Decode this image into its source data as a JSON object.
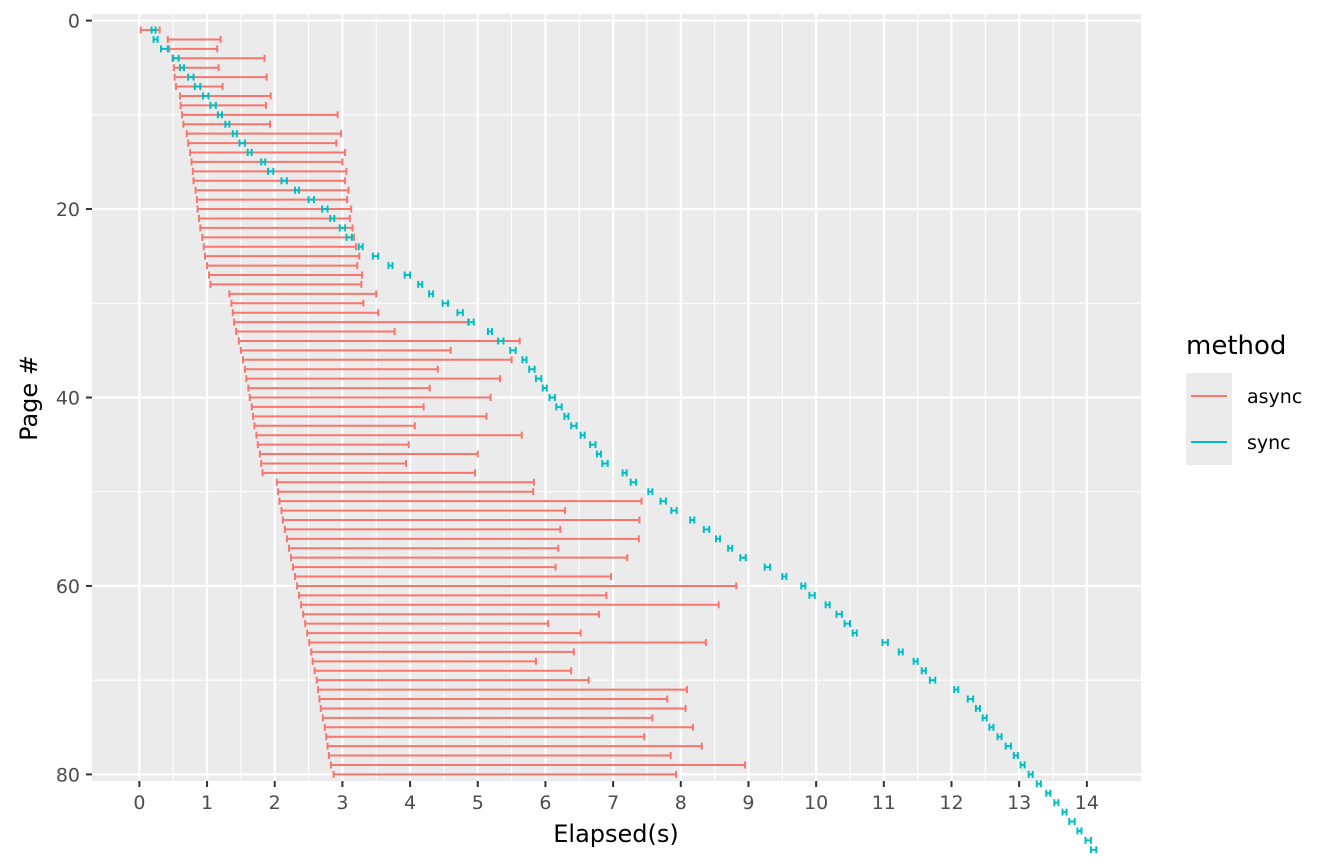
{
  "chart_data": {
    "type": "errorbar-range",
    "title": "",
    "xlabel": "Elapsed(s)",
    "ylabel": "Page #",
    "xlim": [
      -0.7,
      14.8
    ],
    "ylim": [
      80.7,
      -0.7
    ],
    "y_reversed": true,
    "xticks": [
      0,
      1,
      2,
      3,
      4,
      5,
      6,
      7,
      8,
      9,
      10,
      11,
      12,
      13,
      14
    ],
    "yticks": [
      0,
      20,
      40,
      60,
      80
    ],
    "grid": true,
    "panel_background": "#ebebeb",
    "legend": {
      "title": "method",
      "position": "right"
    },
    "series": [
      {
        "name": "async",
        "color": "#f8766d",
        "ranges": [
          [
            1,
            0.02,
            0.3
          ],
          [
            2,
            0.42,
            1.2
          ],
          [
            3,
            0.44,
            1.15
          ],
          [
            4,
            0.49,
            1.85
          ],
          [
            5,
            0.51,
            1.17
          ],
          [
            6,
            0.52,
            1.88
          ],
          [
            7,
            0.54,
            1.23
          ],
          [
            8,
            0.6,
            1.94
          ],
          [
            9,
            0.61,
            1.87
          ],
          [
            10,
            0.63,
            2.93
          ],
          [
            11,
            0.65,
            1.93
          ],
          [
            12,
            0.7,
            2.98
          ],
          [
            13,
            0.72,
            2.91
          ],
          [
            14,
            0.75,
            3.04
          ],
          [
            15,
            0.77,
            3.0
          ],
          [
            16,
            0.79,
            3.06
          ],
          [
            17,
            0.8,
            3.04
          ],
          [
            18,
            0.83,
            3.09
          ],
          [
            19,
            0.85,
            3.07
          ],
          [
            20,
            0.86,
            3.13
          ],
          [
            21,
            0.88,
            3.11
          ],
          [
            22,
            0.9,
            3.15
          ],
          [
            23,
            0.93,
            3.17
          ],
          [
            24,
            0.95,
            3.2
          ],
          [
            25,
            0.97,
            3.25
          ],
          [
            26,
            1.0,
            3.22
          ],
          [
            27,
            1.03,
            3.29
          ],
          [
            28,
            1.05,
            3.28
          ],
          [
            29,
            1.33,
            3.5
          ],
          [
            30,
            1.36,
            3.31
          ],
          [
            31,
            1.38,
            3.53
          ],
          [
            32,
            1.4,
            4.87
          ],
          [
            33,
            1.43,
            3.77
          ],
          [
            34,
            1.47,
            5.62
          ],
          [
            35,
            1.5,
            4.6
          ],
          [
            36,
            1.53,
            5.5
          ],
          [
            37,
            1.56,
            4.41
          ],
          [
            38,
            1.58,
            5.33
          ],
          [
            39,
            1.61,
            4.29
          ],
          [
            40,
            1.63,
            5.19
          ],
          [
            41,
            1.66,
            4.2
          ],
          [
            42,
            1.68,
            5.13
          ],
          [
            43,
            1.7,
            4.07
          ],
          [
            44,
            1.73,
            5.65
          ],
          [
            45,
            1.75,
            3.98
          ],
          [
            46,
            1.78,
            5.0
          ],
          [
            47,
            1.8,
            3.94
          ],
          [
            48,
            1.82,
            4.96
          ],
          [
            49,
            2.03,
            5.83
          ],
          [
            50,
            2.05,
            5.82
          ],
          [
            51,
            2.07,
            7.42
          ],
          [
            52,
            2.1,
            6.29
          ],
          [
            53,
            2.12,
            7.39
          ],
          [
            54,
            2.15,
            6.22
          ],
          [
            55,
            2.18,
            7.38
          ],
          [
            56,
            2.21,
            6.19
          ],
          [
            57,
            2.24,
            7.21
          ],
          [
            58,
            2.27,
            6.15
          ],
          [
            59,
            2.3,
            6.97
          ],
          [
            60,
            2.33,
            8.82
          ],
          [
            61,
            2.36,
            6.9
          ],
          [
            62,
            2.39,
            8.56
          ],
          [
            63,
            2.42,
            6.79
          ],
          [
            64,
            2.45,
            6.04
          ],
          [
            65,
            2.48,
            6.52
          ],
          [
            66,
            2.51,
            8.37
          ],
          [
            67,
            2.54,
            6.42
          ],
          [
            68,
            2.56,
            5.86
          ],
          [
            69,
            2.59,
            6.38
          ],
          [
            70,
            2.62,
            6.64
          ],
          [
            71,
            2.64,
            8.09
          ],
          [
            72,
            2.66,
            7.8
          ],
          [
            73,
            2.68,
            8.07
          ],
          [
            74,
            2.71,
            7.58
          ],
          [
            75,
            2.74,
            8.18
          ],
          [
            76,
            2.76,
            7.46
          ],
          [
            77,
            2.78,
            8.31
          ],
          [
            78,
            2.8,
            7.85
          ],
          [
            79,
            2.83,
            8.95
          ],
          [
            80,
            2.87,
            7.93
          ]
        ]
      },
      {
        "name": "sync",
        "color": "#00bfc4",
        "ranges": [
          [
            1,
            0.18,
            0.24
          ],
          [
            2,
            0.21,
            0.27
          ],
          [
            3,
            0.32,
            0.42
          ],
          [
            4,
            0.5,
            0.58
          ],
          [
            5,
            0.6,
            0.66
          ],
          [
            6,
            0.72,
            0.8
          ],
          [
            7,
            0.82,
            0.9
          ],
          [
            8,
            0.94,
            1.02
          ],
          [
            9,
            1.05,
            1.13
          ],
          [
            10,
            1.16,
            1.22
          ],
          [
            11,
            1.27,
            1.33
          ],
          [
            12,
            1.38,
            1.44
          ],
          [
            13,
            1.48,
            1.56
          ],
          [
            14,
            1.6,
            1.66
          ],
          [
            15,
            1.8,
            1.86
          ],
          [
            16,
            1.9,
            1.98
          ],
          [
            17,
            2.1,
            2.18
          ],
          [
            18,
            2.3,
            2.36
          ],
          [
            19,
            2.5,
            2.58
          ],
          [
            20,
            2.7,
            2.78
          ],
          [
            21,
            2.82,
            2.88
          ],
          [
            22,
            2.96,
            3.04
          ],
          [
            23,
            3.06,
            3.14
          ],
          [
            24,
            3.24,
            3.3
          ],
          [
            25,
            3.45,
            3.53
          ],
          [
            26,
            3.68,
            3.74
          ],
          [
            27,
            3.92,
            4.0
          ],
          [
            28,
            4.12,
            4.18
          ],
          [
            29,
            4.28,
            4.34
          ],
          [
            30,
            4.48,
            4.56
          ],
          [
            31,
            4.7,
            4.78
          ],
          [
            32,
            4.86,
            4.94
          ],
          [
            33,
            5.15,
            5.21
          ],
          [
            34,
            5.3,
            5.38
          ],
          [
            35,
            5.48,
            5.56
          ],
          [
            36,
            5.66,
            5.72
          ],
          [
            37,
            5.76,
            5.84
          ],
          [
            38,
            5.86,
            5.94
          ],
          [
            39,
            5.96,
            6.02
          ],
          [
            40,
            6.06,
            6.14
          ],
          [
            41,
            6.16,
            6.24
          ],
          [
            42,
            6.28,
            6.34
          ],
          [
            43,
            6.38,
            6.46
          ],
          [
            44,
            6.52,
            6.58
          ],
          [
            45,
            6.66,
            6.74
          ],
          [
            46,
            6.76,
            6.82
          ],
          [
            47,
            6.84,
            6.92
          ],
          [
            48,
            7.14,
            7.2
          ],
          [
            49,
            7.26,
            7.34
          ],
          [
            50,
            7.52,
            7.58
          ],
          [
            51,
            7.7,
            7.78
          ],
          [
            52,
            7.86,
            7.94
          ],
          [
            53,
            8.14,
            8.2
          ],
          [
            54,
            8.34,
            8.42
          ],
          [
            55,
            8.52,
            8.58
          ],
          [
            56,
            8.7,
            8.76
          ],
          [
            57,
            8.88,
            8.96
          ],
          [
            58,
            9.24,
            9.32
          ],
          [
            59,
            9.5,
            9.56
          ],
          [
            60,
            9.78,
            9.84
          ],
          [
            61,
            9.9,
            9.98
          ],
          [
            62,
            10.14,
            10.2
          ],
          [
            63,
            10.3,
            10.38
          ],
          [
            64,
            10.42,
            10.5
          ],
          [
            65,
            10.54,
            10.6
          ],
          [
            66,
            10.98,
            11.06
          ],
          [
            67,
            11.22,
            11.28
          ],
          [
            68,
            11.44,
            11.5
          ],
          [
            69,
            11.56,
            11.62
          ],
          [
            70,
            11.68,
            11.76
          ],
          [
            71,
            12.04,
            12.1
          ],
          [
            72,
            12.24,
            12.32
          ],
          [
            73,
            12.36,
            12.42
          ],
          [
            74,
            12.46,
            12.52
          ],
          [
            75,
            12.56,
            12.62
          ],
          [
            76,
            12.68,
            12.74
          ],
          [
            77,
            12.8,
            12.88
          ],
          [
            78,
            12.92,
            12.98
          ],
          [
            79,
            13.02,
            13.08
          ],
          [
            80,
            13.14,
            13.2
          ],
          [
            81,
            13.26,
            13.32
          ],
          [
            82,
            13.4,
            13.46
          ],
          [
            83,
            13.52,
            13.58
          ],
          [
            84,
            13.64,
            13.7
          ],
          [
            85,
            13.74,
            13.82
          ],
          [
            86,
            13.86,
            13.92
          ],
          [
            87,
            13.98,
            14.06
          ],
          [
            88,
            14.06,
            14.14
          ]
        ]
      }
    ]
  }
}
